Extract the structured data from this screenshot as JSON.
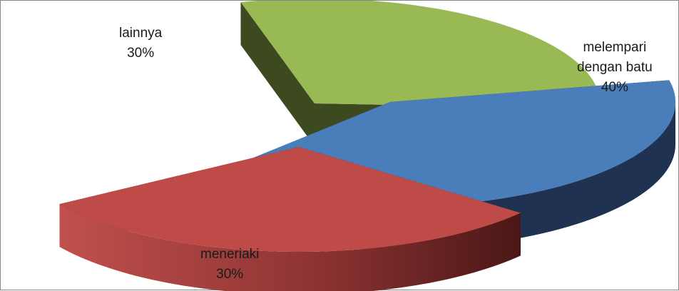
{
  "chart_data": {
    "type": "pie",
    "style": "3d-exploded",
    "title": "",
    "slices": [
      {
        "label": "melempari dengan batu",
        "label_lines": [
          "melempari",
          "dengan batu"
        ],
        "value": 40,
        "percent_label": "40%",
        "color": "#4a7ebb",
        "side_color": "#1f3251"
      },
      {
        "label": "meneriaki",
        "label_lines": [
          "meneriaki"
        ],
        "value": 30,
        "percent_label": "30%",
        "color": "#be4b48",
        "side_color": "#5a1d1c"
      },
      {
        "label": "lainnya",
        "label_lines": [
          "lainnya"
        ],
        "value": 30,
        "percent_label": "30%",
        "color": "#98b954",
        "side_color": "#3d4a20"
      }
    ],
    "legend": "none"
  }
}
